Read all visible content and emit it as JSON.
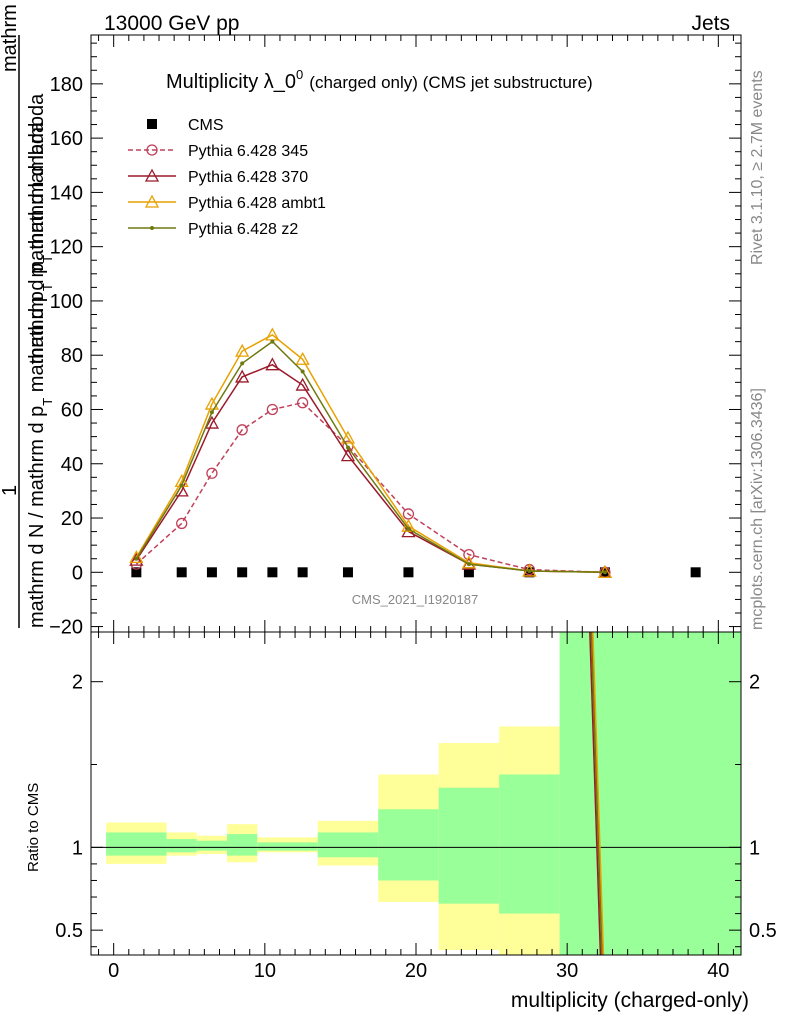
{
  "header": {
    "left": "13000 GeV pp",
    "right": "Jets"
  },
  "side_labels": {
    "rivet": "Rivet 3.1.10, ≥ 2.7M events",
    "mcplots": "mcplots.cern.ch [arXiv:1306.3436]"
  },
  "chart_data": [
    {
      "type": "line",
      "title": "Multiplicity λ_0",
      "title_sup": "0",
      "subtitle": "(charged only) (CMS jet substructure)",
      "watermark": "CMS_2021_I1920187",
      "ylabel_top": "mathrm dN",
      "ylabel_mid": "mathrm d p",
      "ylabel_mid_sub": "T",
      "ylabel_mid_rest": " mathrm d lambda",
      "ylabel_one": "1",
      "ylabel_bottom_a": "mathrm d N / mathrm d p",
      "ylabel_bottom_sub": "T",
      "ylabel_bottom_b": " mathrm d p",
      "ylabel_bottom_sub2": "T",
      "ylabel_bottom_c": " mathrm d lambda",
      "xlim": [
        -1.5,
        41.5
      ],
      "ylim": [
        -22,
        198
      ],
      "yticks": [
        -20,
        0,
        20,
        40,
        60,
        80,
        100,
        120,
        140,
        160,
        180
      ],
      "ytick_labels": [
        "−20",
        "0",
        "20",
        "40",
        "60",
        "80",
        "100",
        "120",
        "140",
        "160",
        "180"
      ],
      "legend_position": "top-left",
      "series": [
        {
          "name": "CMS",
          "color": "#000000",
          "marker": "square",
          "x": [
            1.5,
            4.5,
            6.5,
            8.5,
            10.5,
            12.5,
            15.5,
            19.5,
            23.5,
            27.5,
            32.5,
            38.5
          ],
          "y": [
            0,
            0,
            0,
            0,
            0,
            0,
            0,
            0,
            0,
            0,
            0,
            0
          ]
        },
        {
          "name": "Pythia 6.428 345",
          "color": "#c0405a",
          "marker": "circle-open",
          "dashed": true,
          "x": [
            1.5,
            4.5,
            6.5,
            8.5,
            10.5,
            12.5,
            15.5,
            19.5,
            23.5,
            27.5,
            32.5
          ],
          "y": [
            3,
            18,
            36.5,
            52.5,
            60,
            62.5,
            46.5,
            21.5,
            6.5,
            1,
            0
          ]
        },
        {
          "name": "Pythia 6.428 370",
          "color": "#9b1a2a",
          "marker": "triangle-open",
          "x": [
            1.5,
            4.5,
            6.5,
            8.5,
            10.5,
            12.5,
            15.5,
            19.5,
            23.5,
            27.5,
            32.5
          ],
          "y": [
            4.5,
            30,
            55,
            72,
            76.5,
            69,
            43,
            15,
            3,
            0.5,
            0
          ]
        },
        {
          "name": "Pythia 6.428 ambt1",
          "color": "#e8a100",
          "marker": "triangle-open",
          "x": [
            1.5,
            4.5,
            6.5,
            8.5,
            10.5,
            12.5,
            15.5,
            19.5,
            23.5,
            27.5,
            32.5
          ],
          "y": [
            5.5,
            33.5,
            62,
            81.5,
            87.5,
            78.5,
            49.5,
            17,
            3.5,
            0.5,
            0
          ]
        },
        {
          "name": "Pythia 6.428 z2",
          "color": "#6e7a10",
          "marker": "dot",
          "x": [
            1.5,
            4.5,
            6.5,
            8.5,
            10.5,
            12.5,
            15.5,
            19.5,
            23.5,
            27.5,
            32.5
          ],
          "y": [
            5,
            32,
            59,
            77,
            85,
            74,
            46,
            16,
            3,
            0.5,
            0
          ]
        }
      ]
    },
    {
      "type": "area",
      "ylabel": "Ratio to CMS",
      "xlabel": "multiplicity (charged-only)",
      "xlim": [
        -1.5,
        41.5
      ],
      "xticks": [
        0,
        10,
        20,
        30,
        40
      ],
      "xtick_labels": [
        "0",
        "10",
        "20",
        "30",
        "40"
      ],
      "ylim": [
        0.35,
        2.3
      ],
      "yticks": [
        0.5,
        1,
        2
      ],
      "ytick_labels": [
        "0.5",
        "1",
        "2"
      ],
      "reference": 1,
      "band_colors": {
        "outer": "#ffff99",
        "inner": "#99ff99"
      },
      "bins": [
        {
          "x0": -0.5,
          "x1": 3.5,
          "outer": [
            0.9,
            1.15
          ],
          "inner": [
            0.95,
            1.09
          ]
        },
        {
          "x0": 3.5,
          "x1": 5.5,
          "outer": [
            0.95,
            1.09
          ],
          "inner": [
            0.97,
            1.05
          ]
        },
        {
          "x0": 5.5,
          "x1": 7.5,
          "outer": [
            0.96,
            1.07
          ],
          "inner": [
            0.98,
            1.04
          ]
        },
        {
          "x0": 7.5,
          "x1": 9.5,
          "outer": [
            0.91,
            1.14
          ],
          "inner": [
            0.95,
            1.08
          ]
        },
        {
          "x0": 9.5,
          "x1": 11.5,
          "outer": [
            0.97,
            1.06
          ],
          "inner": [
            0.98,
            1.03
          ]
        },
        {
          "x0": 11.5,
          "x1": 13.5,
          "outer": [
            0.97,
            1.06
          ],
          "inner": [
            0.98,
            1.03
          ]
        },
        {
          "x0": 13.5,
          "x1": 17.5,
          "outer": [
            0.89,
            1.16
          ],
          "inner": [
            0.94,
            1.09
          ]
        },
        {
          "x0": 17.5,
          "x1": 21.5,
          "outer": [
            0.67,
            1.44
          ],
          "inner": [
            0.8,
            1.23
          ]
        },
        {
          "x0": 21.5,
          "x1": 25.5,
          "outer": [
            0.38,
            1.63
          ],
          "inner": [
            0.66,
            1.36
          ]
        },
        {
          "x0": 25.5,
          "x1": 29.5,
          "outer": [
            0.35,
            1.73
          ],
          "inner": [
            0.6,
            1.44
          ]
        },
        {
          "x0": 29.5,
          "x1": 41.5,
          "outer": [
            0.35,
            2.3
          ],
          "inner": [
            0.35,
            2.3
          ]
        }
      ],
      "ratio_lines": [
        {
          "name": "Pythia 6.428 345",
          "color": "#c0405a",
          "x": [
            31.6,
            32.3
          ],
          "y": [
            2.3,
            0.35
          ]
        },
        {
          "name": "Pythia 6.428 370",
          "color": "#9b1a2a",
          "x": [
            31.5,
            32.2
          ],
          "y": [
            2.3,
            0.35
          ]
        },
        {
          "name": "Pythia 6.428 ambt1",
          "color": "#e8a100",
          "x": [
            31.7,
            32.4
          ],
          "y": [
            2.3,
            0.35
          ]
        },
        {
          "name": "Pythia 6.428 z2",
          "color": "#6e7a10",
          "x": [
            31.6,
            32.3
          ],
          "y": [
            2.3,
            0.35
          ]
        }
      ]
    }
  ]
}
